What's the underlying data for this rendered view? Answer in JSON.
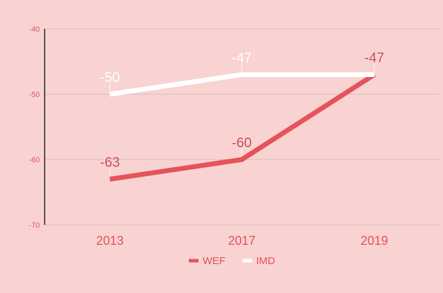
{
  "chart_data": {
    "type": "line",
    "categories": [
      "2013",
      "2017",
      "2019"
    ],
    "series": [
      {
        "name": "WEF",
        "values": [
          -63,
          -60,
          -47
        ],
        "color": "#e5535b"
      },
      {
        "name": "IMD",
        "values": [
          -50,
          -47,
          -47
        ],
        "color": "#ffffff"
      }
    ],
    "ylim": [
      -70,
      -40
    ],
    "yticks": [
      "-40",
      "-50",
      "-60",
      "-70"
    ],
    "data_labels": [
      {
        "series": "IMD",
        "values": [
          "-50",
          "-47",
          "-47"
        ]
      },
      {
        "series": "WEF",
        "values": [
          "-63",
          "-60",
          "-47"
        ]
      }
    ],
    "grid": true,
    "legend_position": "bottom",
    "background": "#f8d3d1",
    "axis_text_color": "#e0545c",
    "title": "",
    "xlabel": "",
    "ylabel": ""
  }
}
